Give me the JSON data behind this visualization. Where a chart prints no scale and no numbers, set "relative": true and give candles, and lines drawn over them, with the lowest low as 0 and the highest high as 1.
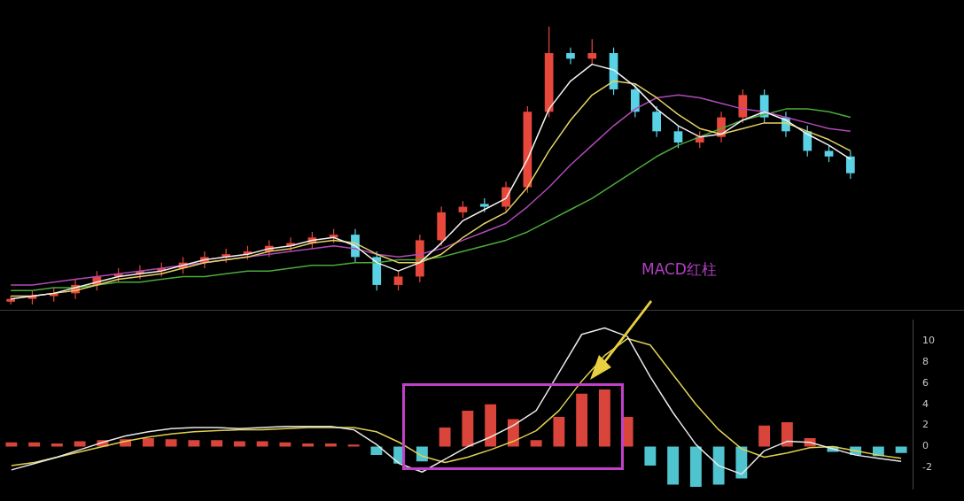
{
  "chart_data": [
    {
      "type": "candlestick",
      "relative": true,
      "tick_labels": false,
      "categories": [
        null,
        null,
        null,
        null,
        null,
        null,
        null,
        null,
        null,
        null,
        null,
        null,
        null,
        null,
        null,
        null,
        null,
        null,
        null,
        null,
        null,
        null,
        null,
        null,
        null,
        null,
        null,
        null,
        null,
        null,
        null,
        null,
        null,
        null,
        null,
        null,
        null,
        null,
        null,
        null
      ],
      "ohlc": [
        [
          0.01,
          0.03,
          0.0,
          0.02
        ],
        [
          0.02,
          0.05,
          0.0,
          0.03
        ],
        [
          0.03,
          0.06,
          0.01,
          0.04
        ],
        [
          0.04,
          0.09,
          0.02,
          0.07
        ],
        [
          0.07,
          0.12,
          0.05,
          0.1
        ],
        [
          0.1,
          0.13,
          0.08,
          0.11
        ],
        [
          0.11,
          0.14,
          0.09,
          0.12
        ],
        [
          0.12,
          0.15,
          0.1,
          0.13
        ],
        [
          0.13,
          0.17,
          0.11,
          0.15
        ],
        [
          0.15,
          0.19,
          0.13,
          0.17
        ],
        [
          0.17,
          0.2,
          0.15,
          0.18
        ],
        [
          0.18,
          0.21,
          0.16,
          0.19
        ],
        [
          0.19,
          0.23,
          0.17,
          0.21
        ],
        [
          0.21,
          0.24,
          0.19,
          0.22
        ],
        [
          0.22,
          0.26,
          0.2,
          0.24
        ],
        [
          0.24,
          0.27,
          0.22,
          0.25
        ],
        [
          0.25,
          0.27,
          0.15,
          0.17
        ],
        [
          0.17,
          0.19,
          0.05,
          0.07
        ],
        [
          0.07,
          0.12,
          0.05,
          0.1
        ],
        [
          0.1,
          0.25,
          0.08,
          0.23
        ],
        [
          0.23,
          0.35,
          0.21,
          0.33
        ],
        [
          0.33,
          0.37,
          0.31,
          0.35
        ],
        [
          0.36,
          0.38,
          0.33,
          0.35
        ],
        [
          0.35,
          0.44,
          0.33,
          0.42
        ],
        [
          0.42,
          0.71,
          0.4,
          0.69
        ],
        [
          0.69,
          1.0,
          0.67,
          0.9
        ],
        [
          0.9,
          0.92,
          0.86,
          0.88
        ],
        [
          0.88,
          0.95,
          0.86,
          0.9
        ],
        [
          0.9,
          0.92,
          0.75,
          0.77
        ],
        [
          0.77,
          0.79,
          0.67,
          0.69
        ],
        [
          0.69,
          0.71,
          0.6,
          0.62
        ],
        [
          0.62,
          0.64,
          0.56,
          0.58
        ],
        [
          0.58,
          0.62,
          0.56,
          0.6
        ],
        [
          0.6,
          0.69,
          0.58,
          0.67
        ],
        [
          0.67,
          0.77,
          0.65,
          0.75
        ],
        [
          0.75,
          0.77,
          0.65,
          0.67
        ],
        [
          0.67,
          0.69,
          0.6,
          0.62
        ],
        [
          0.62,
          0.64,
          0.53,
          0.55
        ],
        [
          0.55,
          0.57,
          0.51,
          0.53
        ],
        [
          0.53,
          0.55,
          0.45,
          0.47
        ]
      ],
      "colors": [
        "#e8483c",
        "#e8483c",
        "#e8483c",
        "#e8483c",
        "#e8483c",
        "#e8483c",
        "#e8483c",
        "#e8483c",
        "#e8483c",
        "#e8483c",
        "#e8483c",
        "#e8483c",
        "#e8483c",
        "#e8483c",
        "#e8483c",
        "#e8483c",
        "#5ad2e6",
        "#5ad2e6",
        "#e8483c",
        "#e8483c",
        "#e8483c",
        "#e8483c",
        "#5ad2e6",
        "#e8483c",
        "#e8483c",
        "#e8483c",
        "#5ad2e6",
        "#e8483c",
        "#5ad2e6",
        "#5ad2e6",
        "#5ad2e6",
        "#5ad2e6",
        "#e8483c",
        "#e8483c",
        "#e8483c",
        "#5ad2e6",
        "#5ad2e6",
        "#5ad2e6",
        "#5ad2e6",
        "#5ad2e6"
      ],
      "series": [
        {
          "type": "line",
          "color": "#f2f2f2",
          "values": [
            0.02,
            0.03,
            0.04,
            0.06,
            0.08,
            0.1,
            0.11,
            0.12,
            0.14,
            0.16,
            0.17,
            0.18,
            0.2,
            0.21,
            0.23,
            0.24,
            0.21,
            0.15,
            0.12,
            0.15,
            0.22,
            0.3,
            0.34,
            0.38,
            0.52,
            0.7,
            0.8,
            0.86,
            0.84,
            0.78,
            0.7,
            0.64,
            0.6,
            0.61,
            0.66,
            0.69,
            0.66,
            0.61,
            0.57,
            0.52
          ]
        },
        {
          "type": "line",
          "color": "#e6d264",
          "values": [
            0.03,
            0.03,
            0.04,
            0.05,
            0.07,
            0.09,
            0.1,
            0.11,
            0.13,
            0.15,
            0.16,
            0.17,
            0.19,
            0.2,
            0.22,
            0.23,
            0.22,
            0.18,
            0.15,
            0.15,
            0.18,
            0.24,
            0.29,
            0.33,
            0.42,
            0.55,
            0.66,
            0.75,
            0.8,
            0.79,
            0.74,
            0.68,
            0.63,
            0.61,
            0.63,
            0.65,
            0.65,
            0.62,
            0.59,
            0.55
          ]
        },
        {
          "type": "line",
          "color": "#b04ab8",
          "values": [
            0.07,
            0.07,
            0.08,
            0.09,
            0.1,
            0.11,
            0.12,
            0.13,
            0.14,
            0.15,
            0.16,
            0.17,
            0.18,
            0.19,
            0.2,
            0.21,
            0.2,
            0.18,
            0.17,
            0.18,
            0.2,
            0.23,
            0.26,
            0.29,
            0.35,
            0.42,
            0.5,
            0.57,
            0.64,
            0.7,
            0.74,
            0.75,
            0.74,
            0.72,
            0.7,
            0.69,
            0.67,
            0.65,
            0.63,
            0.62
          ]
        },
        {
          "type": "line",
          "color": "#4caa3c",
          "values": [
            0.05,
            0.05,
            0.06,
            0.06,
            0.07,
            0.08,
            0.08,
            0.09,
            0.1,
            0.1,
            0.11,
            0.12,
            0.12,
            0.13,
            0.14,
            0.14,
            0.15,
            0.15,
            0.16,
            0.16,
            0.17,
            0.19,
            0.21,
            0.23,
            0.26,
            0.3,
            0.34,
            0.38,
            0.43,
            0.48,
            0.53,
            0.57,
            0.6,
            0.63,
            0.66,
            0.68,
            0.7,
            0.7,
            0.69,
            0.67
          ]
        }
      ]
    },
    {
      "type": "bar",
      "tick_labels": "y",
      "ylim": [
        -4,
        12
      ],
      "yticks": [
        -2,
        0,
        2,
        4,
        6,
        8,
        10
      ],
      "categories": [
        null,
        null,
        null,
        null,
        null,
        null,
        null,
        null,
        null,
        null,
        null,
        null,
        null,
        null,
        null,
        null,
        null,
        null,
        null,
        null,
        null,
        null,
        null,
        null,
        null,
        null,
        null,
        null,
        null,
        null,
        null,
        null,
        null,
        null,
        null,
        null,
        null,
        null,
        null,
        null
      ],
      "annotations": [
        "MACD红柱"
      ],
      "series": [
        {
          "type": "bar",
          "values": [
            0.4,
            0.4,
            0.3,
            0.5,
            0.6,
            0.7,
            0.8,
            0.7,
            0.6,
            0.6,
            0.5,
            0.5,
            0.4,
            0.3,
            0.3,
            0.2,
            -0.8,
            -1.6,
            -1.4,
            1.8,
            3.4,
            4.0,
            2.6,
            0.6,
            2.8,
            5.0,
            5.4,
            2.8,
            -1.8,
            -3.6,
            -3.8,
            -3.6,
            -3.0,
            2.0,
            2.3,
            0.8,
            -0.5,
            -0.8,
            -0.9,
            -0.6
          ],
          "colors": [
            "#d9453a",
            "#d9453a",
            "#d9453a",
            "#d9453a",
            "#d9453a",
            "#d9453a",
            "#d9453a",
            "#d9453a",
            "#d9453a",
            "#d9453a",
            "#d9453a",
            "#d9453a",
            "#d9453a",
            "#d9453a",
            "#d9453a",
            "#d9453a",
            "#4fc4cf",
            "#4fc4cf",
            "#4fc4cf",
            "#d9453a",
            "#d9453a",
            "#d9453a",
            "#d9453a",
            "#d9453a",
            "#d9453a",
            "#d9453a",
            "#d9453a",
            "#d9453a",
            "#4fc4cf",
            "#4fc4cf",
            "#4fc4cf",
            "#4fc4cf",
            "#4fc4cf",
            "#d9453a",
            "#d9453a",
            "#d9453a",
            "#4fc4cf",
            "#4fc4cf",
            "#4fc4cf",
            "#4fc4cf"
          ]
        },
        {
          "type": "line",
          "color": "#e8e8e8",
          "values": [
            -2.2,
            -1.6,
            -1.0,
            -0.3,
            0.4,
            1.0,
            1.4,
            1.7,
            1.8,
            1.8,
            1.7,
            1.8,
            1.9,
            1.9,
            1.9,
            1.6,
            0.2,
            -1.6,
            -2.4,
            -1.2,
            0.0,
            0.9,
            2.0,
            3.4,
            7.0,
            10.6,
            11.2,
            10.4,
            6.6,
            3.2,
            0.2,
            -1.8,
            -2.6,
            -0.4,
            0.5,
            0.4,
            -0.2,
            -0.8,
            -1.1,
            -1.4
          ]
        },
        {
          "type": "line",
          "color": "#e0d050",
          "values": [
            -1.8,
            -1.5,
            -1.0,
            -0.5,
            0.0,
            0.5,
            0.9,
            1.2,
            1.4,
            1.5,
            1.6,
            1.6,
            1.7,
            1.8,
            1.8,
            1.8,
            1.4,
            0.4,
            -0.9,
            -1.5,
            -1.0,
            -0.3,
            0.5,
            1.5,
            3.4,
            6.2,
            8.6,
            10.2,
            9.6,
            6.8,
            4.0,
            1.6,
            -0.2,
            -1.0,
            -0.6,
            -0.1,
            0.0,
            -0.4,
            -0.8,
            -1.1
          ]
        }
      ]
    }
  ]
}
